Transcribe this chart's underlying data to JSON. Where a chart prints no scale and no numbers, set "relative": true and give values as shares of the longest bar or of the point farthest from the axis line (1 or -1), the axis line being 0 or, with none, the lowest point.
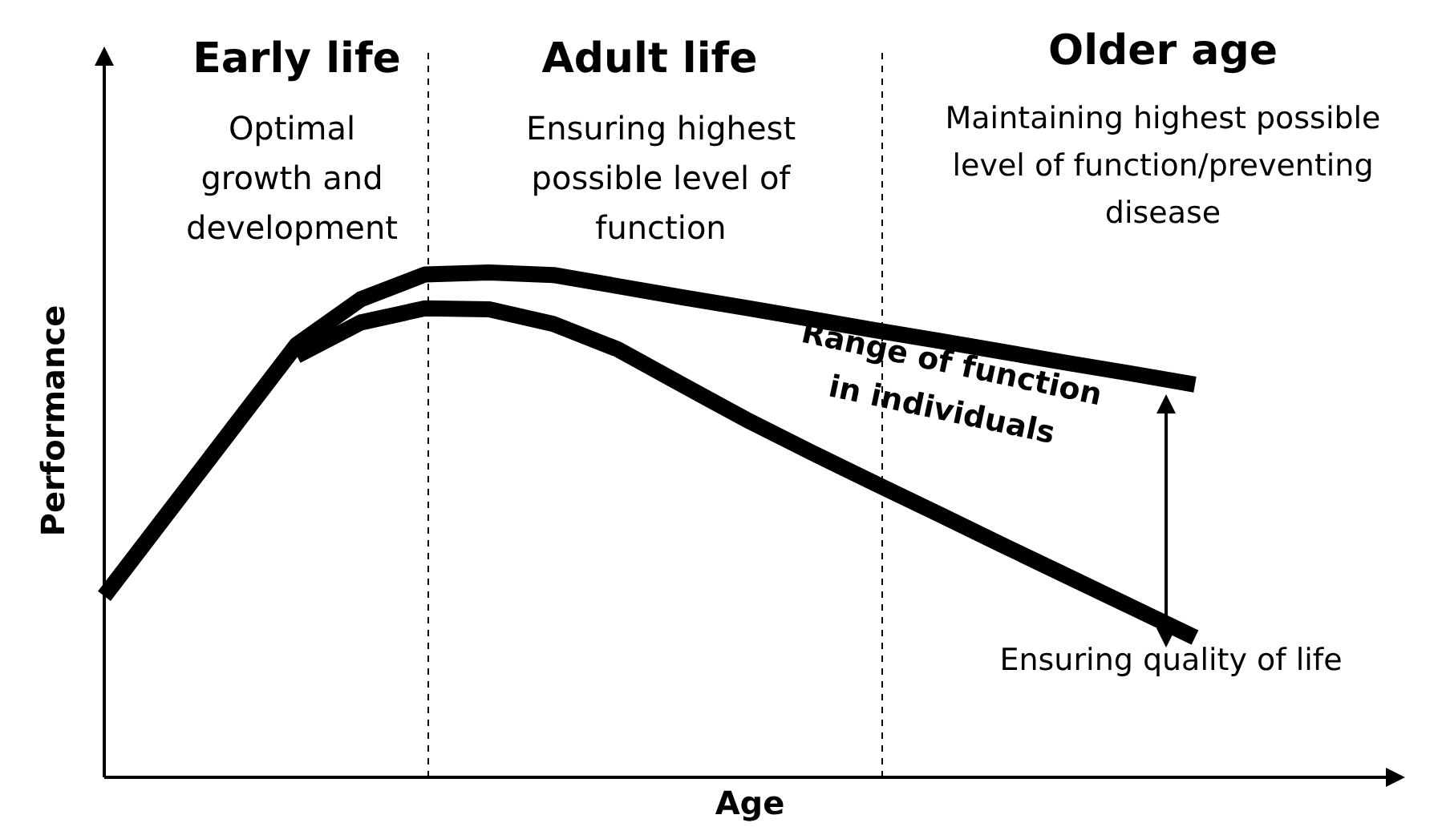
{
  "chart_data": {
    "type": "line",
    "relative": true,
    "xlabel": "Age",
    "ylabel": "Performance",
    "categories": [
      null,
      null,
      null,
      null,
      null,
      null,
      null,
      null,
      null,
      null,
      null,
      null,
      null,
      null,
      null,
      null,
      null,
      null
    ],
    "series": [
      {
        "values": [
          0.359,
          0.525,
          0.691,
          0.857,
          0.947,
          0.996,
          1,
          0.995,
          0.973,
          0.951,
          0.93,
          0.908,
          0.886,
          0.865,
          0.843,
          0.821,
          0.8,
          0.778
        ],
        "color": "#000000"
      },
      {
        "values": [
          null,
          null,
          null,
          0.835,
          0.901,
          0.929,
          0.927,
          0.898,
          0.848,
          0.778,
          0.709,
          0.645,
          0.583,
          0.522,
          0.46,
          0.399,
          0.338,
          0.277
        ],
        "color": "#000000"
      }
    ],
    "annotations": [
      "Early life",
      "Optimal growth and development",
      "Adult life",
      "Ensuring highest possible level of function",
      "Older age",
      "Maintaining highest possible level of function/preventing disease",
      "Range of function in individuals",
      "Ensuring quality of life"
    ]
  }
}
